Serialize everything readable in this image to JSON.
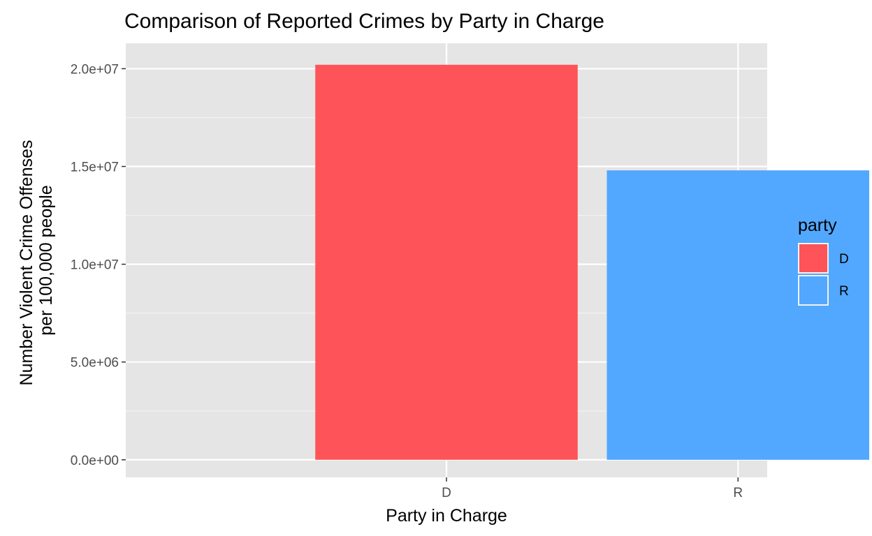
{
  "chart_data": {
    "type": "bar",
    "title": "Comparison of Reported Crimes by Party in Charge",
    "xlabel": "Party in Charge",
    "ylabel": [
      "Number Violent Crime Offenses",
      "per 100,000 people"
    ],
    "categories": [
      "D",
      "R"
    ],
    "values": [
      20200000,
      14800000
    ],
    "colors": [
      "#fe5358",
      "#52a7fe"
    ],
    "ylim": [
      -900000,
      21300000
    ],
    "yticks": [
      0,
      5000000,
      10000000,
      15000000,
      20000000
    ],
    "ytick_labels": [
      "0.0e+00",
      "5.0e+06",
      "1.0e+07",
      "1.5e+07",
      "2.0e+07"
    ],
    "grid": true,
    "panel_background": "#e5e5e5",
    "legend": {
      "title": "party",
      "position": "right",
      "entries": [
        {
          "label": "D",
          "color": "#fe5358"
        },
        {
          "label": "R",
          "color": "#52a7fe"
        }
      ]
    }
  }
}
